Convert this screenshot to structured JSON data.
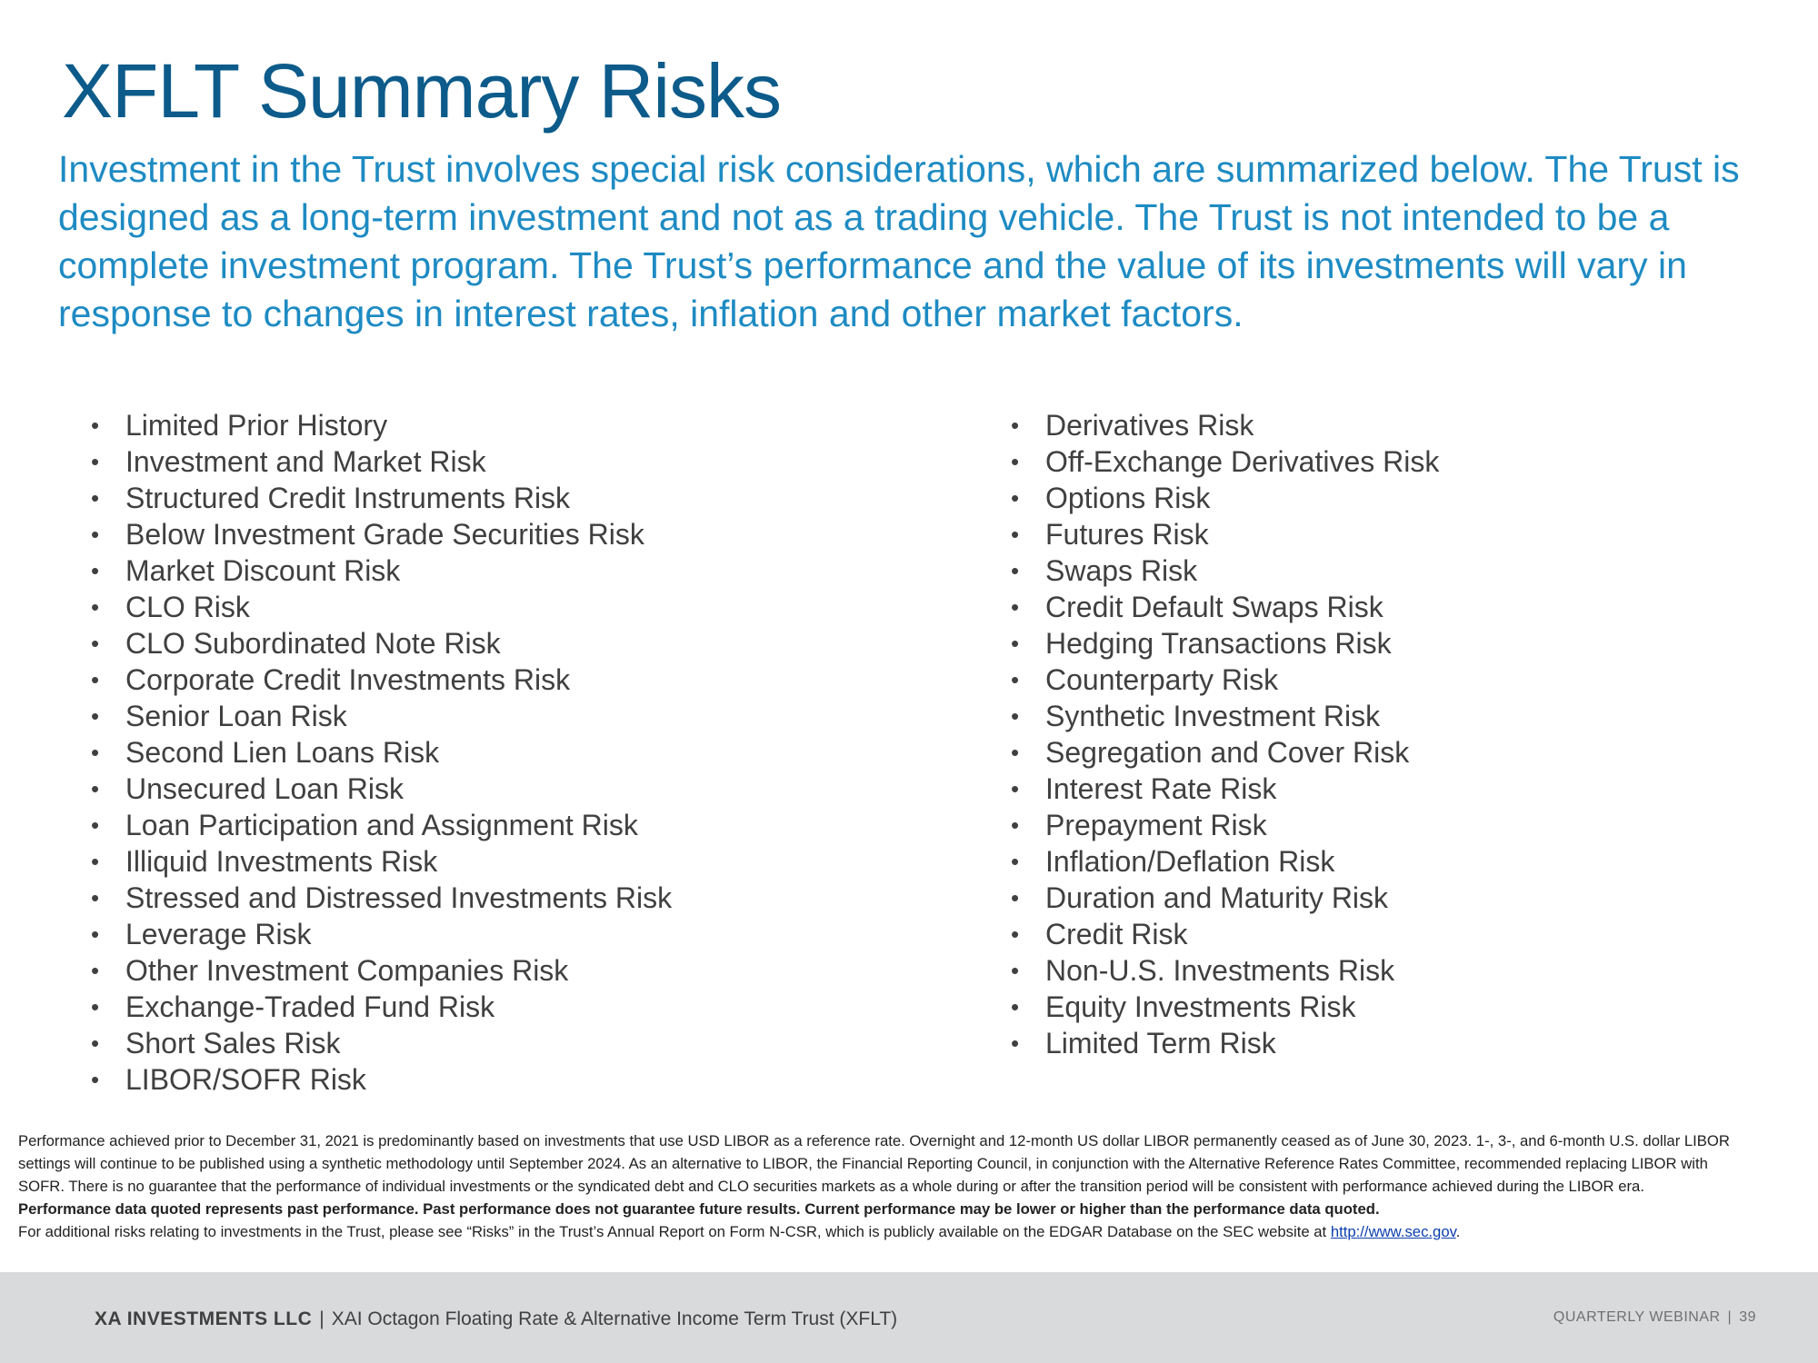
{
  "slide": {
    "title": "XFLT Summary Risks",
    "intro": "Investment in the Trust involves special risk considerations, which are summarized below. The Trust is designed as a long-term investment and not as a trading vehicle. The Trust is not intended to be a complete investment program. The Trust’s performance and the value of its investments will vary in response to changes in interest rates, inflation and other market factors."
  },
  "risks": {
    "bullet": "•",
    "left": [
      "Limited Prior History",
      "Investment and Market Risk",
      "Structured Credit Instruments Risk",
      "Below Investment Grade Securities Risk",
      "Market Discount Risk",
      "CLO Risk",
      "CLO Subordinated Note Risk",
      "Corporate Credit Investments Risk",
      "Senior Loan Risk",
      "Second Lien Loans Risk",
      "Unsecured Loan Risk",
      "Loan Participation and Assignment Risk",
      "Illiquid Investments Risk",
      "Stressed and Distressed Investments Risk",
      "Leverage Risk",
      "Other Investment Companies Risk",
      "Exchange-Traded Fund Risk",
      "Short Sales Risk",
      "LIBOR/SOFR Risk"
    ],
    "right": [
      "Derivatives Risk",
      "Off-Exchange Derivatives Risk",
      "Options Risk",
      "Futures Risk",
      "Swaps Risk",
      "Credit Default Swaps Risk",
      "Hedging Transactions Risk",
      "Counterparty Risk",
      "Synthetic Investment Risk",
      "Segregation and Cover Risk",
      "Interest Rate Risk",
      "Prepayment Risk",
      "Inflation/Deflation Risk",
      "Duration and Maturity Risk",
      "Credit Risk",
      "Non-U.S. Investments Risk",
      "Equity Investments Risk",
      "Limited Term Risk"
    ]
  },
  "disclaimer": {
    "libor_note": "Performance achieved prior to December 31, 2021 is predominantly based on investments that use USD LIBOR as a reference rate.  Overnight and 12-month US dollar LIBOR permanently ceased as of June 30, 2023. 1-, 3-, and 6-month U.S. dollar LIBOR settings will continue to be published using a synthetic methodology until September 2024. As an alternative to LIBOR, the Financial Reporting Council, in conjunction with the Alternative Reference Rates Committee, recommended replacing LIBOR with SOFR. There is no guarantee that the performance of individual investments or the syndicated debt and CLO securities markets as a whole during or after the transition period will be consistent with performance achieved during the LIBOR era.",
    "performance_note": "Performance data quoted represents past performance. Past performance does not guarantee future results. Current performance may be lower or higher than the performance data quoted.",
    "additional_risks_text": "For additional risks relating to investments in the Trust, please see “Risks” in the Trust’s Annual Report on Form N-CSR, which is publicly available on the EDGAR Database on the SEC website at ",
    "sec_link": "http://www.sec.gov",
    "trailing_period": "."
  },
  "footer": {
    "company": "XA INVESTMENTS LLC",
    "separator": "|",
    "fund_name": "XAI Octagon Floating Rate & Alternative Income Term Trust (XFLT)",
    "event": "QUARTERLY WEBINAR",
    "page_number": "39"
  },
  "colors": {
    "title": "#0c5b8a",
    "intro": "#1e8bc3",
    "body_text": "#404040",
    "footer_bg": "#d8dadc",
    "link": "#0c3fae"
  }
}
